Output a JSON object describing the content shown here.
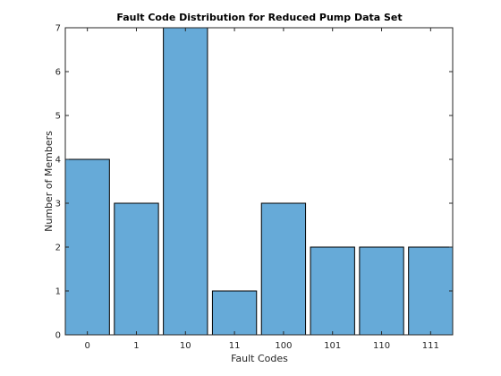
{
  "chart_data": {
    "type": "bar",
    "title": "Fault Code Distribution for Reduced Pump Data Set",
    "xlabel": "Fault Codes",
    "ylabel": "Number of Members",
    "categories": [
      "0",
      "1",
      "10",
      "11",
      "100",
      "101",
      "110",
      "111"
    ],
    "values": [
      4,
      3,
      7,
      1,
      3,
      2,
      2,
      2
    ],
    "ylim": [
      0,
      7
    ],
    "yticks": [
      0,
      1,
      2,
      3,
      4,
      5,
      6,
      7
    ],
    "grid": false,
    "bar_color": "#66aad8",
    "bar_edge_color": "#000000"
  }
}
